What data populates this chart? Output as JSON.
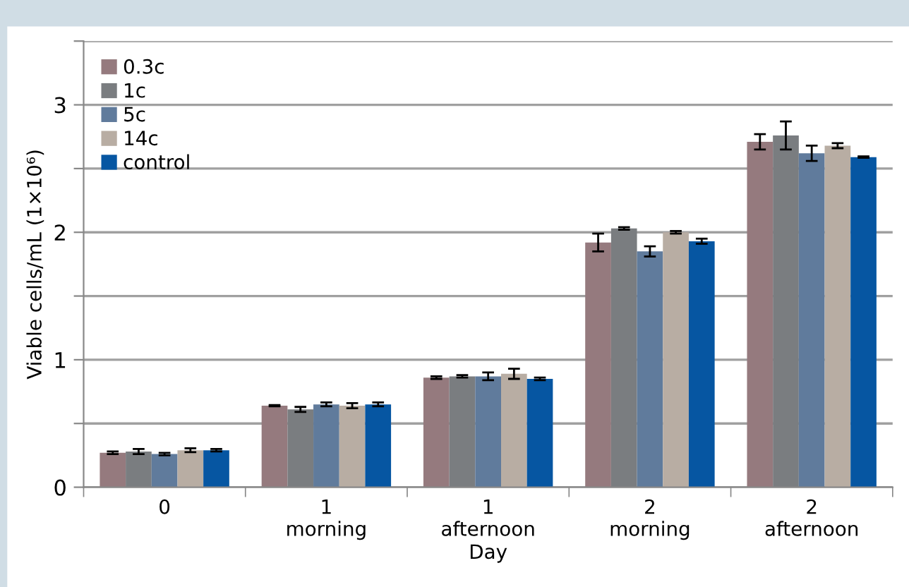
{
  "chart_data": {
    "type": "bar",
    "xlabel": "Day",
    "ylabel": "Viable cells/mL (1×10⁶)",
    "categories": [
      "0",
      "1\nmorning",
      "1\nafternoon",
      "2\nmorning",
      "2\nafternoon"
    ],
    "series": [
      {
        "name": "0.3c",
        "color": "#957a7e",
        "values": [
          0.27,
          0.64,
          0.86,
          1.92,
          2.71
        ],
        "errors": [
          0.01,
          0.005,
          0.01,
          0.07,
          0.06
        ]
      },
      {
        "name": "1c",
        "color": "#7a7d80",
        "values": [
          0.28,
          0.61,
          0.87,
          2.03,
          2.76
        ],
        "errors": [
          0.02,
          0.02,
          0.01,
          0.01,
          0.11
        ]
      },
      {
        "name": "5c",
        "color": "#607b9c",
        "values": [
          0.26,
          0.65,
          0.87,
          1.85,
          2.62
        ],
        "errors": [
          0.01,
          0.015,
          0.03,
          0.04,
          0.06
        ]
      },
      {
        "name": "14c",
        "color": "#b8ada3",
        "values": [
          0.29,
          0.64,
          0.89,
          2.0,
          2.68
        ],
        "errors": [
          0.015,
          0.02,
          0.04,
          0.01,
          0.02
        ]
      },
      {
        "name": "control",
        "color": "#0656a2",
        "values": [
          0.29,
          0.65,
          0.85,
          1.93,
          2.59
        ],
        "errors": [
          0.01,
          0.015,
          0.01,
          0.02,
          0.005
        ]
      }
    ],
    "ylim": [
      0,
      3.5
    ],
    "yticks": [
      0,
      {
        "value": 0.5,
        "label": null
      },
      1,
      {
        "value": 1.5,
        "label": null
      },
      2,
      {
        "value": 2.5,
        "label": null
      },
      3,
      {
        "value": 3.5,
        "label": null
      }
    ],
    "grid": "y",
    "legend": "top left"
  }
}
